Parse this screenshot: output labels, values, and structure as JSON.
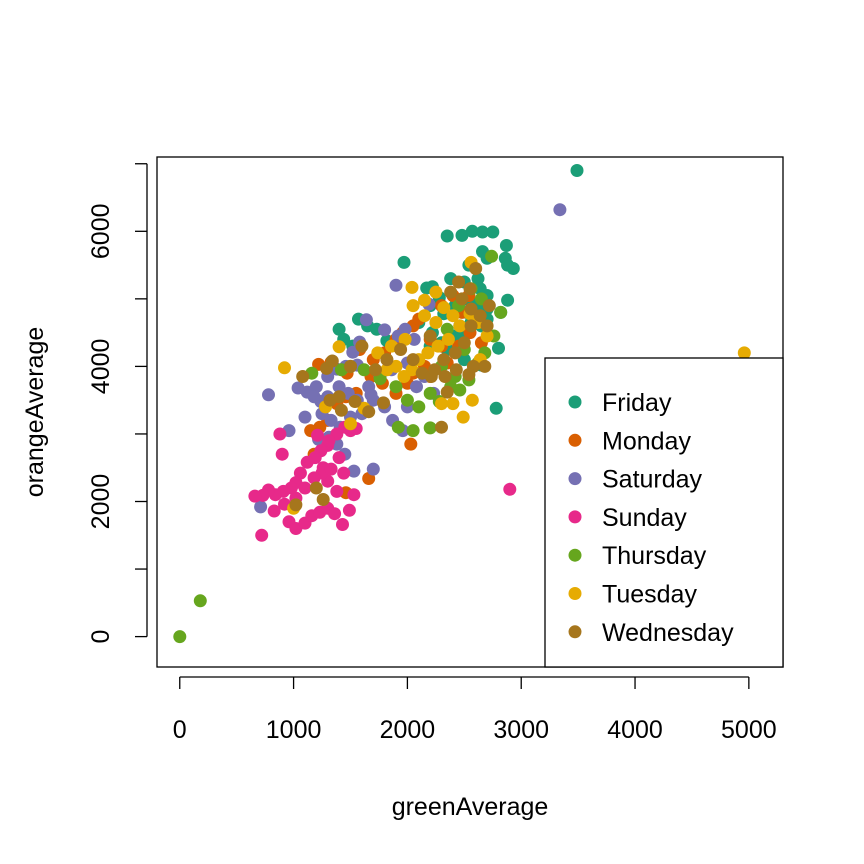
{
  "chart_data": {
    "type": "scatter",
    "title": "",
    "xlabel": "greenAverage",
    "ylabel": "orangeAverage",
    "xlim": [
      -200,
      5300
    ],
    "ylim": [
      -450,
      7100
    ],
    "x_ticks": [
      0,
      1000,
      2000,
      3000,
      4000,
      5000
    ],
    "x_tick_labels": [
      "0",
      "1000",
      "2000",
      "3000",
      "4000",
      "5000"
    ],
    "y_ticks": [
      0,
      1000,
      2000,
      3000,
      4000,
      5000,
      6000,
      7000
    ],
    "y_tick_labels": [
      "0",
      "",
      "2000",
      "",
      "4000",
      "",
      "6000",
      ""
    ],
    "grid": false,
    "legend_position": "bottom-right",
    "series": [
      {
        "name": "Friday",
        "color": "#1B9E77",
        "points": [
          [
            3490,
            6900
          ],
          [
            2350,
            5930
          ],
          [
            2480,
            5940
          ],
          [
            2570,
            6000
          ],
          [
            2660,
            5990
          ],
          [
            2750,
            5990
          ],
          [
            2870,
            5790
          ],
          [
            2860,
            5600
          ],
          [
            2930,
            5450
          ],
          [
            2880,
            5500
          ],
          [
            1970,
            5540
          ],
          [
            2170,
            5160
          ],
          [
            2220,
            5180
          ],
          [
            2280,
            5020
          ],
          [
            2380,
            5300
          ],
          [
            2500,
            5250
          ],
          [
            2620,
            5300
          ],
          [
            2660,
            5700
          ],
          [
            2700,
            5600
          ],
          [
            2540,
            5500
          ],
          [
            2640,
            5150
          ],
          [
            2700,
            5050
          ],
          [
            2880,
            4980
          ],
          [
            2820,
            4800
          ],
          [
            2700,
            4850
          ],
          [
            2650,
            4600
          ],
          [
            2600,
            4750
          ],
          [
            2520,
            4800
          ],
          [
            2460,
            4600
          ],
          [
            2400,
            4450
          ],
          [
            2300,
            4350
          ],
          [
            2220,
            4500
          ],
          [
            2100,
            4650
          ],
          [
            2320,
            4780
          ],
          [
            2200,
            4900
          ],
          [
            2420,
            4900
          ],
          [
            2540,
            4980
          ],
          [
            2630,
            4900
          ],
          [
            2700,
            4700
          ],
          [
            2560,
            4650
          ],
          [
            2480,
            4450
          ],
          [
            2350,
            4250
          ],
          [
            2200,
            4300
          ],
          [
            2800,
            4270
          ],
          [
            2780,
            3380
          ],
          [
            1400,
            4550
          ],
          [
            1440,
            4400
          ],
          [
            1520,
            4300
          ],
          [
            1570,
            4700
          ],
          [
            1650,
            4600
          ],
          [
            1730,
            4550
          ],
          [
            1820,
            4380
          ],
          [
            2500,
            4100
          ],
          [
            2180,
            3900
          ],
          [
            2650,
            4020
          ]
        ]
      },
      {
        "name": "Monday",
        "color": "#D95F02",
        "points": [
          [
            1220,
            4030
          ],
          [
            1330,
            4060
          ],
          [
            1470,
            3900
          ],
          [
            1580,
            4250
          ],
          [
            1700,
            4100
          ],
          [
            1800,
            4200
          ],
          [
            1900,
            4400
          ],
          [
            1960,
            4500
          ],
          [
            2050,
            4600
          ],
          [
            2100,
            4700
          ],
          [
            2200,
            4400
          ],
          [
            2300,
            4900
          ],
          [
            2400,
            5050
          ],
          [
            2480,
            4800
          ],
          [
            2540,
            5050
          ],
          [
            2600,
            4700
          ],
          [
            2300,
            4300
          ],
          [
            2150,
            4000
          ],
          [
            2050,
            3900
          ],
          [
            2000,
            3750
          ],
          [
            1900,
            3600
          ],
          [
            1780,
            3750
          ],
          [
            1680,
            3850
          ],
          [
            1550,
            3600
          ],
          [
            1460,
            3550
          ],
          [
            1380,
            3450
          ],
          [
            1300,
            3200
          ],
          [
            1230,
            3100
          ],
          [
            1150,
            3050
          ],
          [
            1180,
            2700
          ],
          [
            2030,
            2850
          ],
          [
            1660,
            2340
          ],
          [
            1460,
            2130
          ],
          [
            2200,
            3850
          ],
          [
            2350,
            4050
          ],
          [
            2450,
            4300
          ],
          [
            2550,
            4500
          ],
          [
            2650,
            4350
          ]
        ]
      },
      {
        "name": "Saturday",
        "color": "#7570B3",
        "points": [
          [
            3340,
            6320
          ],
          [
            1900,
            5200
          ],
          [
            2190,
            4920
          ],
          [
            1640,
            4690
          ],
          [
            1800,
            4540
          ],
          [
            1920,
            4450
          ],
          [
            1980,
            4550
          ],
          [
            2060,
            4400
          ],
          [
            1580,
            4360
          ],
          [
            1520,
            4210
          ],
          [
            1460,
            4000
          ],
          [
            1380,
            3960
          ],
          [
            1300,
            3850
          ],
          [
            1200,
            3700
          ],
          [
            1240,
            3480
          ],
          [
            1120,
            3620
          ],
          [
            1040,
            3680
          ],
          [
            1250,
            3300
          ],
          [
            1330,
            3200
          ],
          [
            1410,
            3100
          ],
          [
            1500,
            3250
          ],
          [
            1600,
            3300
          ],
          [
            1700,
            3500
          ],
          [
            1800,
            3400
          ],
          [
            1870,
            3200
          ],
          [
            1960,
            3050
          ],
          [
            2000,
            3400
          ],
          [
            2080,
            3700
          ],
          [
            2150,
            3850
          ],
          [
            2230,
            3600
          ],
          [
            2000,
            4050
          ],
          [
            1860,
            3950
          ],
          [
            1760,
            3850
          ],
          [
            1660,
            3700
          ],
          [
            1560,
            3500
          ],
          [
            1480,
            3600
          ],
          [
            1400,
            3700
          ],
          [
            1300,
            3550
          ],
          [
            1180,
            3550
          ],
          [
            1220,
            2920
          ],
          [
            1310,
            2950
          ],
          [
            1380,
            2850
          ],
          [
            1450,
            2700
          ],
          [
            1530,
            2450
          ],
          [
            1700,
            2480
          ],
          [
            960,
            3050
          ],
          [
            780,
            3580
          ],
          [
            710,
            1920
          ],
          [
            1100,
            3250
          ],
          [
            1560,
            4020
          ],
          [
            1680,
            3580
          ]
        ]
      },
      {
        "name": "Sunday",
        "color": "#E7298A",
        "points": [
          [
            2900,
            2180
          ],
          [
            1260,
            2500
          ],
          [
            1210,
            2980
          ],
          [
            1300,
            2830
          ],
          [
            1400,
            2650
          ],
          [
            1500,
            3050
          ],
          [
            1550,
            3080
          ],
          [
            1450,
            3100
          ],
          [
            1380,
            3000
          ],
          [
            1310,
            2900
          ],
          [
            1240,
            2750
          ],
          [
            1190,
            2650
          ],
          [
            1120,
            2580
          ],
          [
            1060,
            2420
          ],
          [
            1020,
            2280
          ],
          [
            980,
            2200
          ],
          [
            910,
            2150
          ],
          [
            840,
            2100
          ],
          [
            780,
            2170
          ],
          [
            730,
            2090
          ],
          [
            660,
            2080
          ],
          [
            720,
            1500
          ],
          [
            830,
            1860
          ],
          [
            920,
            1960
          ],
          [
            960,
            1700
          ],
          [
            1020,
            1600
          ],
          [
            1100,
            1680
          ],
          [
            1160,
            1790
          ],
          [
            1230,
            1840
          ],
          [
            1300,
            1900
          ],
          [
            1360,
            1820
          ],
          [
            1430,
            1660
          ],
          [
            1490,
            1870
          ],
          [
            1530,
            2100
          ],
          [
            1380,
            2150
          ],
          [
            1300,
            2300
          ],
          [
            1250,
            2420
          ],
          [
            1180,
            2350
          ],
          [
            1100,
            2200
          ],
          [
            1020,
            2050
          ],
          [
            900,
            2700
          ],
          [
            880,
            3000
          ],
          [
            1440,
            2420
          ],
          [
            1330,
            2480
          ]
        ]
      },
      {
        "name": "Thursday",
        "color": "#66A61E",
        "points": [
          [
            0,
            0
          ],
          [
            180,
            530
          ],
          [
            1160,
            3900
          ],
          [
            1420,
            3950
          ],
          [
            1500,
            4000
          ],
          [
            1620,
            3950
          ],
          [
            1760,
            3820
          ],
          [
            1900,
            3700
          ],
          [
            2000,
            3500
          ],
          [
            2100,
            3400
          ],
          [
            2200,
            3600
          ],
          [
            2280,
            3480
          ],
          [
            2380,
            3700
          ],
          [
            2460,
            3650
          ],
          [
            2540,
            3800
          ],
          [
            2620,
            4050
          ],
          [
            2680,
            4200
          ],
          [
            2760,
            4450
          ],
          [
            2820,
            4800
          ],
          [
            2740,
            5630
          ],
          [
            2200,
            3090
          ],
          [
            2050,
            3050
          ],
          [
            2420,
            3850
          ],
          [
            2500,
            4250
          ],
          [
            2350,
            4550
          ],
          [
            2450,
            4900
          ],
          [
            2560,
            5150
          ],
          [
            2650,
            5000
          ],
          [
            1920,
            3100
          ],
          [
            2300,
            4000
          ]
        ]
      },
      {
        "name": "Tuesday",
        "color": "#E6AB02",
        "points": [
          [
            4960,
            4200
          ],
          [
            2560,
            5540
          ],
          [
            2040,
            5170
          ],
          [
            2150,
            4980
          ],
          [
            2250,
            5100
          ],
          [
            2050,
            4900
          ],
          [
            2150,
            4750
          ],
          [
            2250,
            4650
          ],
          [
            2320,
            4870
          ],
          [
            2400,
            4750
          ],
          [
            2460,
            4600
          ],
          [
            2550,
            4780
          ],
          [
            2620,
            4650
          ],
          [
            2700,
            4450
          ],
          [
            2360,
            4400
          ],
          [
            2270,
            4300
          ],
          [
            2180,
            4200
          ],
          [
            2100,
            4100
          ],
          [
            2040,
            3950
          ],
          [
            1970,
            3850
          ],
          [
            1900,
            4000
          ],
          [
            1820,
            3950
          ],
          [
            1740,
            4200
          ],
          [
            1860,
            4300
          ],
          [
            1980,
            4400
          ],
          [
            1400,
            4290
          ],
          [
            2400,
            3450
          ],
          [
            2490,
            3250
          ],
          [
            2300,
            3450
          ],
          [
            1620,
            3380
          ],
          [
            1500,
            3150
          ],
          [
            1280,
            3400
          ],
          [
            920,
            3980
          ],
          [
            1000,
            1900
          ],
          [
            2570,
            3500
          ],
          [
            2640,
            4100
          ]
        ]
      },
      {
        "name": "Wednesday",
        "color": "#A6761D",
        "points": [
          [
            1080,
            3850
          ],
          [
            1290,
            3970
          ],
          [
            1340,
            4080
          ],
          [
            1500,
            4000
          ],
          [
            1600,
            4300
          ],
          [
            1720,
            3950
          ],
          [
            1820,
            4100
          ],
          [
            1940,
            4250
          ],
          [
            2050,
            4100
          ],
          [
            2130,
            3900
          ],
          [
            2210,
            3850
          ],
          [
            2320,
            4100
          ],
          [
            2420,
            4200
          ],
          [
            2500,
            4350
          ],
          [
            2560,
            4600
          ],
          [
            2640,
            4750
          ],
          [
            2700,
            4600
          ],
          [
            2560,
            4850
          ],
          [
            2480,
            5000
          ],
          [
            2380,
            5100
          ],
          [
            2450,
            5250
          ],
          [
            2550,
            5150
          ],
          [
            2600,
            5450
          ],
          [
            2720,
            4900
          ],
          [
            2580,
            4000
          ],
          [
            2680,
            4000
          ],
          [
            2540,
            3880
          ],
          [
            2430,
            3950
          ],
          [
            2330,
            3850
          ],
          [
            2240,
            3950
          ],
          [
            2200,
            4450
          ],
          [
            1790,
            3460
          ],
          [
            1660,
            3330
          ],
          [
            1540,
            3480
          ],
          [
            1420,
            3350
          ],
          [
            1320,
            3500
          ],
          [
            1400,
            3550
          ],
          [
            1200,
            2200
          ],
          [
            1260,
            2030
          ],
          [
            1020,
            1950
          ],
          [
            2350,
            3620
          ],
          [
            2300,
            3100
          ]
        ]
      }
    ]
  }
}
